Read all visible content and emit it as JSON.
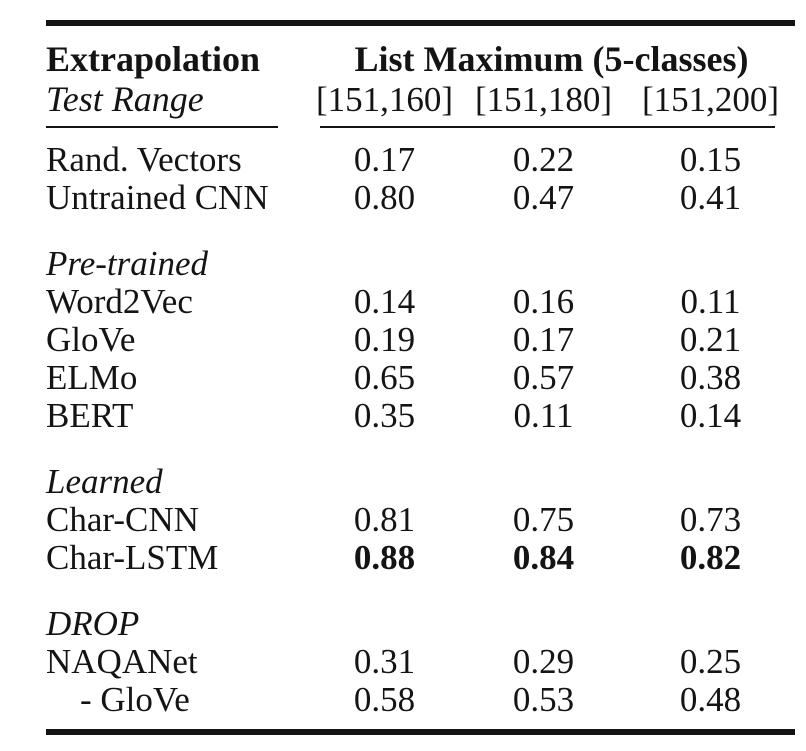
{
  "page": {
    "background_color": "#ffffff",
    "text_color": "#141414"
  },
  "table": {
    "title_col_header": "Extrapolation",
    "title_col_subheader": "Test Range",
    "group_header": "List Maximum (5-classes)",
    "range_columns": [
      "[151,160]",
      "[151,180]",
      "[151,200]"
    ],
    "sections": [
      {
        "label": "",
        "rows": [
          {
            "name": "Rand. Vectors",
            "values": [
              "0.17",
              "0.22",
              "0.15"
            ],
            "bold_values": false,
            "indent": false
          },
          {
            "name": "Untrained CNN",
            "values": [
              "0.80",
              "0.47",
              "0.41"
            ],
            "bold_values": false,
            "indent": false
          }
        ]
      },
      {
        "label": "Pre-trained",
        "rows": [
          {
            "name": "Word2Vec",
            "values": [
              "0.14",
              "0.16",
              "0.11"
            ],
            "bold_values": false,
            "indent": false
          },
          {
            "name": "GloVe",
            "values": [
              "0.19",
              "0.17",
              "0.21"
            ],
            "bold_values": false,
            "indent": false
          },
          {
            "name": "ELMo",
            "values": [
              "0.65",
              "0.57",
              "0.38"
            ],
            "bold_values": false,
            "indent": false
          },
          {
            "name": "BERT",
            "values": [
              "0.35",
              "0.11",
              "0.14"
            ],
            "bold_values": false,
            "indent": false
          }
        ]
      },
      {
        "label": "Learned",
        "rows": [
          {
            "name": "Char-CNN",
            "values": [
              "0.81",
              "0.75",
              "0.73"
            ],
            "bold_values": false,
            "indent": false
          },
          {
            "name": "Char-LSTM",
            "values": [
              "0.88",
              "0.84",
              "0.82"
            ],
            "bold_values": true,
            "indent": false
          }
        ]
      },
      {
        "label": "DROP",
        "rows": [
          {
            "name": "NAQANet",
            "values": [
              "0.31",
              "0.29",
              "0.25"
            ],
            "bold_values": false,
            "indent": false
          },
          {
            "name": "- GloVe",
            "values": [
              "0.58",
              "0.53",
              "0.48"
            ],
            "bold_values": false,
            "indent": true
          }
        ]
      }
    ]
  }
}
